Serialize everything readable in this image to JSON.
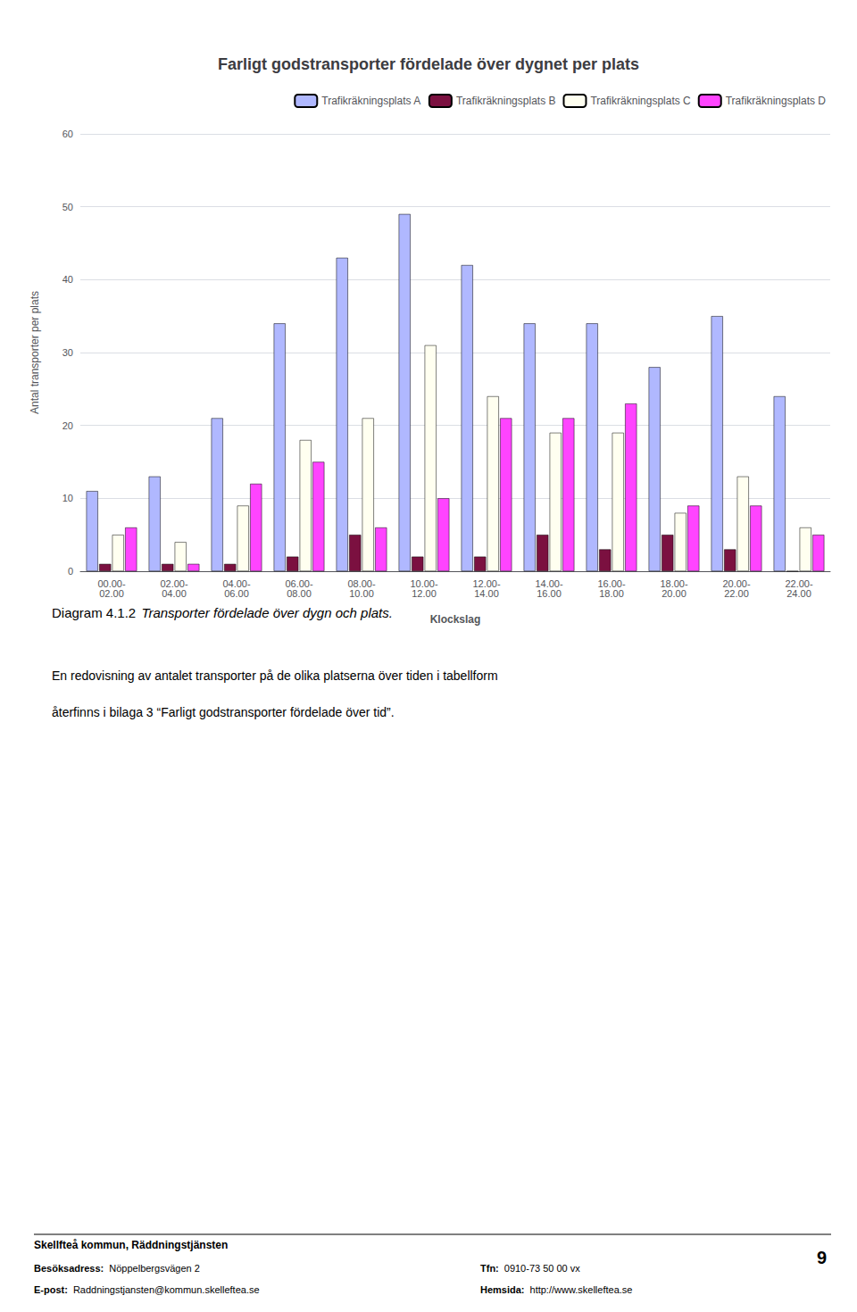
{
  "chart_data": {
    "type": "bar",
    "title": "Farligt godstransporter fördelade över dygnet per plats",
    "xlabel": "Klockslag",
    "ylabel": "Antal transporter per plats",
    "categories": [
      "00.00-\n02.00",
      "02.00-\n04.00",
      "04.00-\n06.00",
      "06.00-\n08.00",
      "08.00-\n10.00",
      "10.00-\n12.00",
      "12.00-\n14.00",
      "14.00-\n16.00",
      "16.00-\n18.00",
      "18.00-\n20.00",
      "20.00-\n22.00",
      "22.00-\n24.00"
    ],
    "series": [
      {
        "name": "Trafikräkningsplats A",
        "color": "#b0b8ff",
        "values": [
          11,
          13,
          21,
          34,
          43,
          49,
          42,
          34,
          34,
          28,
          35,
          24
        ]
      },
      {
        "name": "Trafikräkningsplats B",
        "color": "#7b1040",
        "values": [
          1,
          1,
          1,
          2,
          5,
          2,
          2,
          5,
          3,
          5,
          3,
          0
        ]
      },
      {
        "name": "Trafikräkningsplats C",
        "color": "#fffff0",
        "values": [
          5,
          4,
          9,
          18,
          21,
          31,
          24,
          19,
          19,
          8,
          13,
          6
        ]
      },
      {
        "name": "Trafikräkningsplats D",
        "color": "#ff44ff",
        "values": [
          6,
          1,
          12,
          15,
          6,
          10,
          21,
          21,
          23,
          9,
          9,
          5
        ]
      }
    ],
    "ylim": [
      0,
      60
    ],
    "yticks": [
      0,
      10,
      20,
      30,
      40,
      50,
      60
    ],
    "grid": true,
    "legend": "upper right",
    "annotations": [
      "Diagram 4.1.2",
      "Transporter fördelade över dygn och plats.",
      "En redovisning av antalet transporter på de olika platserna över tiden i tabellform",
      "återfinns i bilaga 3 “Farligt godstransporter fördelade över tid”.",
      "Skellfteå kommun, Räddningstjänsten",
      "Besöksadress:",
      "Nöppelbergsvägen 2",
      "E-post:",
      "Raddningstjansten@kommun.skelleftea.se",
      "Tfn:",
      "0910-73 50 00 vx",
      "Hemsida:",
      "http://www.skelleftea.se",
      "9"
    ]
  }
}
